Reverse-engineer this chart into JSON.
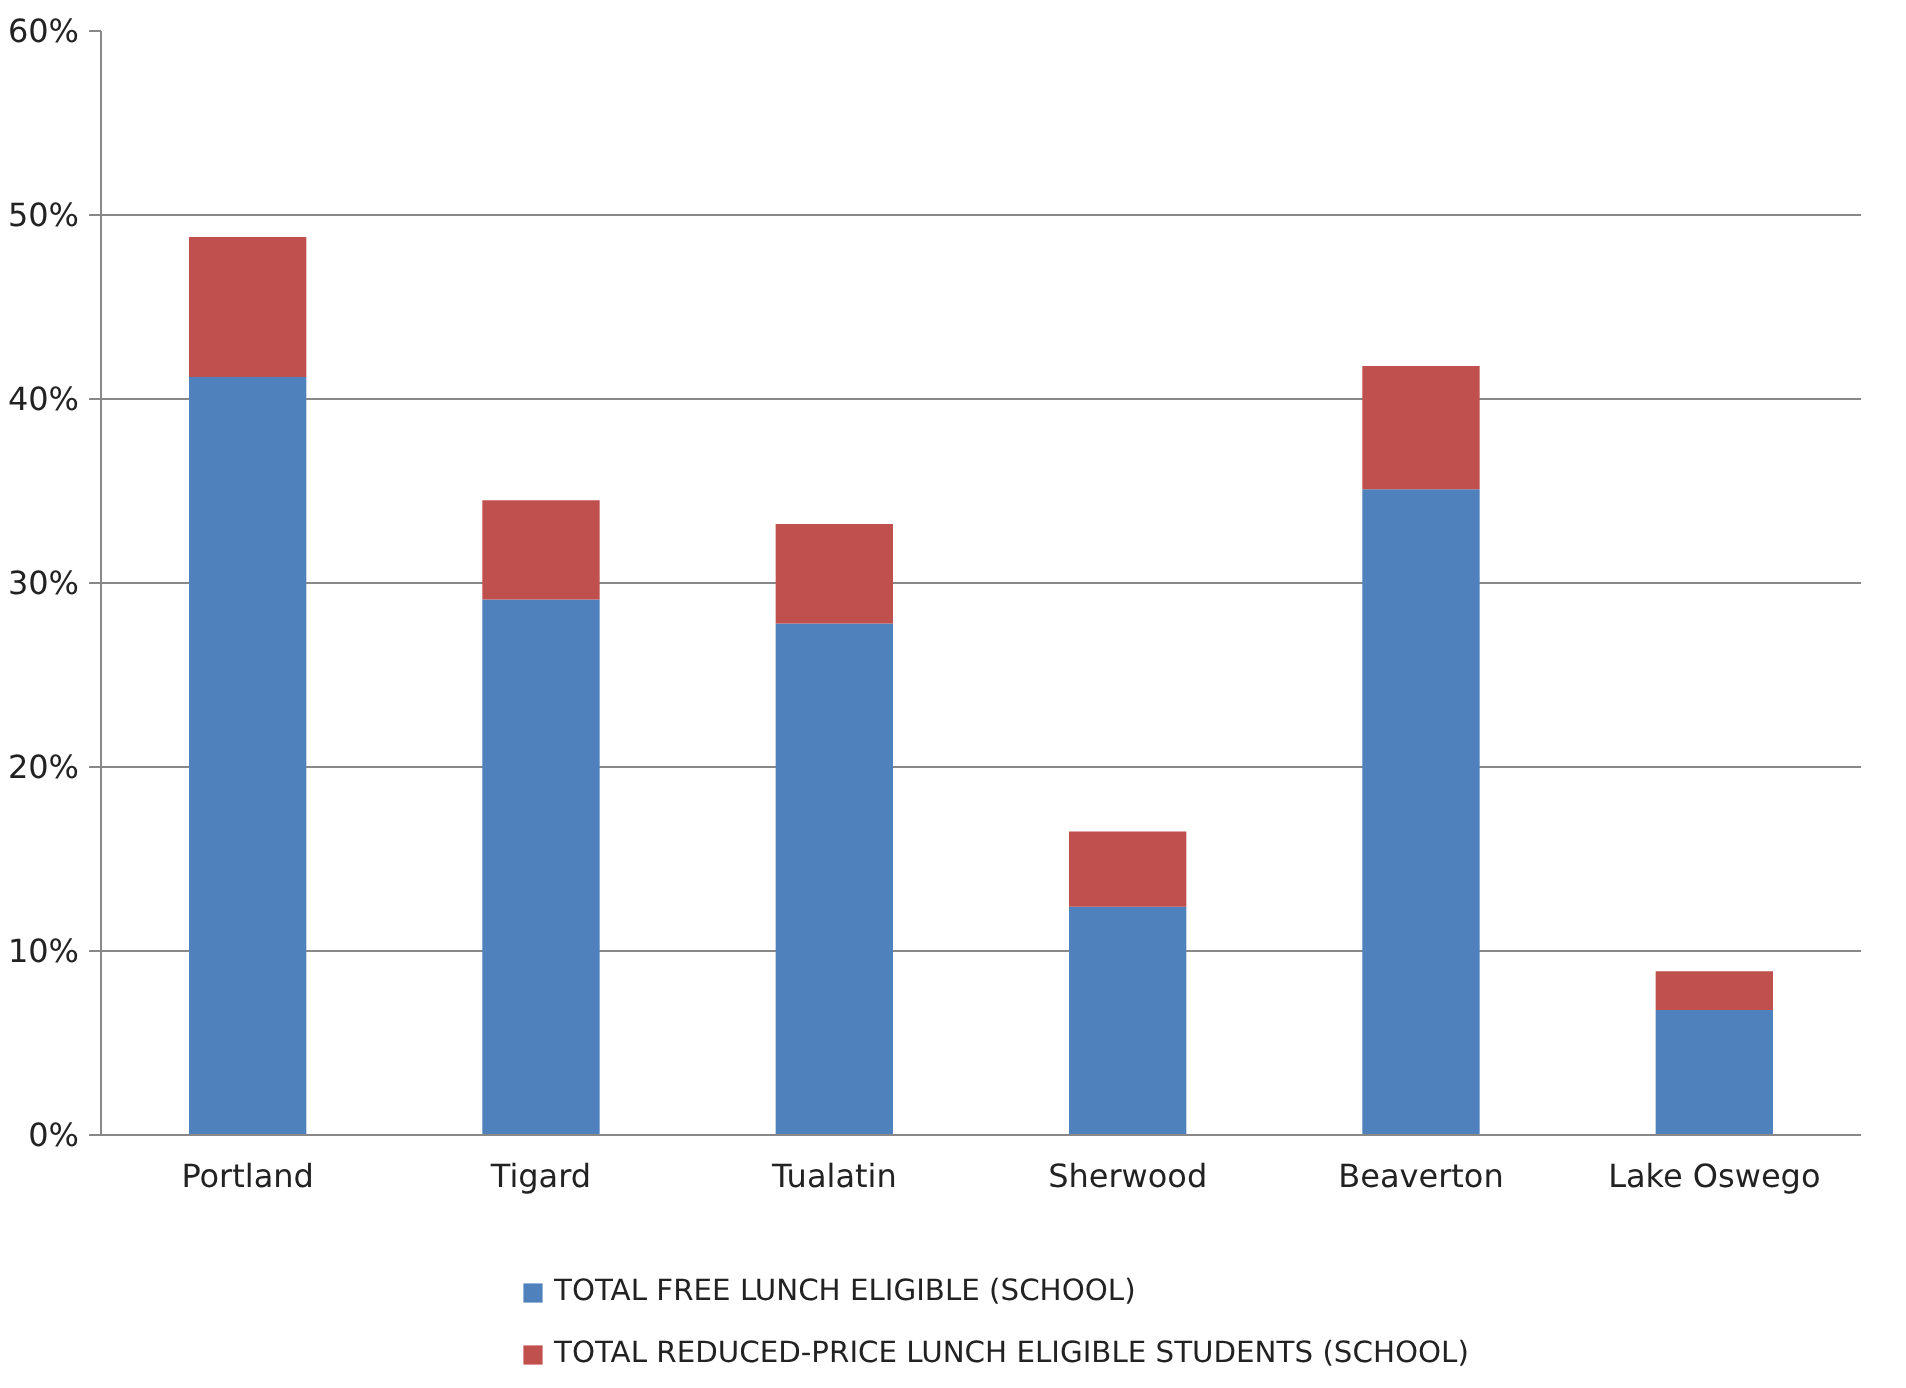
{
  "chart_data": {
    "type": "bar",
    "stacked": true,
    "categories": [
      "Portland",
      "Tigard",
      "Tualatin",
      "Sherwood",
      "Beaverton",
      "Lake Oswego"
    ],
    "series": [
      {
        "name": "TOTAL FREE LUNCH ELIGIBLE (SCHOOL)",
        "color": "#4f81bd",
        "values": [
          41.2,
          29.1,
          27.8,
          12.4,
          35.1,
          6.8
        ]
      },
      {
        "name": "TOTAL REDUCED-PRICE LUNCH ELIGIBLE STUDENTS (SCHOOL)",
        "color": "#c0504d",
        "values": [
          7.6,
          5.4,
          5.4,
          4.1,
          6.7,
          2.1
        ]
      }
    ],
    "ylim": [
      0,
      60
    ],
    "yticks": [
      {
        "value": 0,
        "label": "0%"
      },
      {
        "value": 10,
        "label": "10%"
      },
      {
        "value": 20,
        "label": "20%"
      },
      {
        "value": 30,
        "label": "30%"
      },
      {
        "value": 40,
        "label": "40%"
      },
      {
        "value": 50,
        "label": "50%"
      },
      {
        "value": 60,
        "label": "60%"
      }
    ],
    "grid": "y",
    "legend": "bottom"
  }
}
